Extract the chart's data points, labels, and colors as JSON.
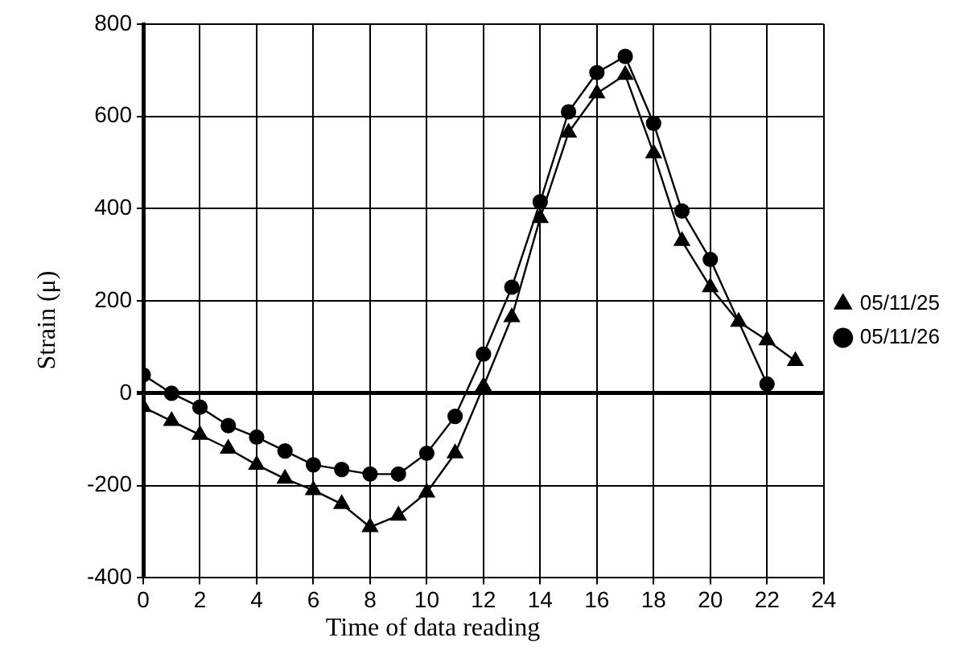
{
  "chart_data": {
    "type": "line",
    "xlabel": "Time of data reading",
    "ylabel": "Strain (μ)",
    "x": [
      0,
      1,
      2,
      3,
      4,
      5,
      6,
      7,
      8,
      9,
      10,
      11,
      12,
      13,
      14,
      15,
      16,
      17,
      18,
      19,
      20,
      21,
      22,
      23
    ],
    "series": [
      {
        "name": "05/11/25",
        "color": "#000000",
        "marker": "triangle",
        "values": [
          -30,
          -60,
          -90,
          -120,
          -155,
          -185,
          -210,
          -240,
          -290,
          -265,
          -215,
          -130,
          15,
          165,
          380,
          565,
          650,
          690,
          520,
          330,
          230,
          155,
          115,
          70
        ]
      },
      {
        "name": "05/11/26",
        "color": "#000000",
        "marker": "circle",
        "values": [
          40,
          0,
          -30,
          -70,
          -95,
          -125,
          -155,
          -165,
          -175,
          -175,
          -130,
          -50,
          85,
          230,
          415,
          610,
          695,
          730,
          585,
          395,
          290,
          null,
          20,
          null
        ]
      }
    ],
    "xlim": [
      0,
      24
    ],
    "xticks": [
      0,
      2,
      4,
      6,
      8,
      10,
      12,
      14,
      16,
      18,
      20,
      22,
      24
    ],
    "ylim": [
      -400,
      800
    ],
    "yticks": [
      -400,
      -200,
      0,
      200,
      400,
      600,
      800
    ],
    "grid": true,
    "legend": "right",
    "line_style": "solid"
  }
}
